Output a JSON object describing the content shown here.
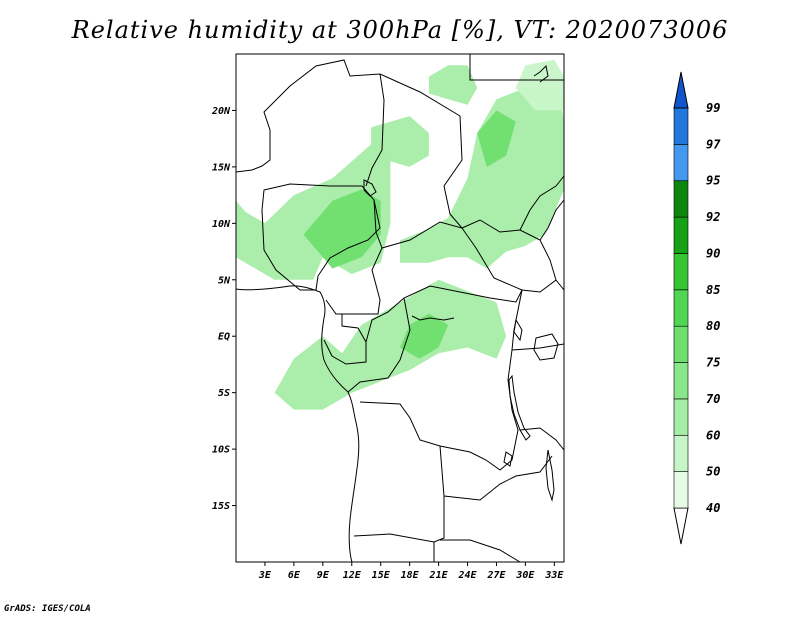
{
  "title": "Relative humidity at 300hPa [%], VT: 2020073006",
  "credit": "GrADS: IGES/COLA",
  "map": {
    "lon_range": [
      0,
      34
    ],
    "lat_range": [
      -20,
      25
    ],
    "lat_ticks": [
      {
        "value": 20,
        "label": "20N"
      },
      {
        "value": 15,
        "label": "15N"
      },
      {
        "value": 10,
        "label": "10N"
      },
      {
        "value": 5,
        "label": "5N"
      },
      {
        "value": 0,
        "label": "EQ"
      },
      {
        "value": -5,
        "label": "5S"
      },
      {
        "value": -10,
        "label": "10S"
      },
      {
        "value": -15,
        "label": "15S"
      }
    ],
    "lon_ticks": [
      {
        "value": 3,
        "label": "3E"
      },
      {
        "value": 6,
        "label": "6E"
      },
      {
        "value": 9,
        "label": "9E"
      },
      {
        "value": 12,
        "label": "12E"
      },
      {
        "value": 15,
        "label": "15E"
      },
      {
        "value": 18,
        "label": "18E"
      },
      {
        "value": 21,
        "label": "21E"
      },
      {
        "value": 24,
        "label": "24E"
      },
      {
        "value": 27,
        "label": "27E"
      },
      {
        "value": 30,
        "label": "30E"
      },
      {
        "value": 33,
        "label": "33E"
      }
    ],
    "humidity_regions": [
      {
        "level": 60,
        "points": [
          [
            0,
            7
          ],
          [
            4,
            5
          ],
          [
            8,
            5
          ],
          [
            9,
            7
          ],
          [
            12,
            5.5
          ],
          [
            15,
            6.5
          ],
          [
            16,
            10
          ],
          [
            16,
            16
          ],
          [
            14,
            17
          ],
          [
            10,
            14
          ],
          [
            6,
            12.5
          ],
          [
            3,
            10
          ],
          [
            1,
            11
          ],
          [
            0,
            12
          ]
        ]
      },
      {
        "level": 75,
        "points": [
          [
            7,
            9
          ],
          [
            10,
            6
          ],
          [
            13,
            7
          ],
          [
            15,
            9
          ],
          [
            15,
            12
          ],
          [
            13,
            13
          ],
          [
            10,
            12
          ]
        ]
      },
      {
        "level": 60,
        "points": [
          [
            4,
            -5
          ],
          [
            6,
            -2
          ],
          [
            9,
            0
          ],
          [
            11,
            -1.5
          ],
          [
            13,
            1
          ],
          [
            15,
            2
          ],
          [
            17,
            3
          ],
          [
            19,
            4
          ],
          [
            21,
            5
          ],
          [
            24,
            4
          ],
          [
            27,
            3
          ],
          [
            28,
            0
          ],
          [
            27,
            -2
          ],
          [
            24,
            -1
          ],
          [
            21,
            -1.5
          ],
          [
            18,
            -3
          ],
          [
            15,
            -4
          ],
          [
            12,
            -5
          ],
          [
            9,
            -6.5
          ],
          [
            6,
            -6.5
          ]
        ]
      },
      {
        "level": 75,
        "points": [
          [
            18,
            1
          ],
          [
            20,
            2
          ],
          [
            22,
            1
          ],
          [
            21,
            -1
          ],
          [
            19,
            -2
          ],
          [
            17,
            -1
          ]
        ]
      },
      {
        "level": 60,
        "points": [
          [
            17,
            8.5
          ],
          [
            20,
            9.5
          ],
          [
            22,
            10.5
          ],
          [
            24,
            14
          ],
          [
            25,
            18
          ],
          [
            27,
            21
          ],
          [
            30,
            22
          ],
          [
            33.5,
            22
          ],
          [
            34,
            19
          ],
          [
            34,
            13
          ],
          [
            32,
            9
          ],
          [
            30,
            8
          ],
          [
            28,
            7.5
          ],
          [
            26,
            6
          ],
          [
            24,
            7
          ],
          [
            22,
            7
          ],
          [
            20,
            6.5
          ],
          [
            17,
            6.5
          ]
        ]
      },
      {
        "level": 75,
        "points": [
          [
            25,
            18
          ],
          [
            27,
            20
          ],
          [
            29,
            19
          ],
          [
            28,
            16
          ],
          [
            26,
            15
          ]
        ]
      },
      {
        "level": 60,
        "points": [
          [
            14,
            18.5
          ],
          [
            16,
            19
          ],
          [
            18,
            19.5
          ],
          [
            20,
            18
          ],
          [
            20,
            16
          ],
          [
            18,
            15
          ],
          [
            16,
            15.5
          ],
          [
            14,
            16.5
          ]
        ]
      },
      {
        "level": 60,
        "points": [
          [
            20,
            23
          ],
          [
            22,
            24
          ],
          [
            24,
            24
          ],
          [
            25,
            22
          ],
          [
            24,
            20.5
          ],
          [
            22,
            21
          ],
          [
            20,
            21.5
          ]
        ]
      },
      {
        "level": 50,
        "points": [
          [
            30,
            24
          ],
          [
            33,
            24.5
          ],
          [
            34,
            23
          ],
          [
            34,
            20
          ],
          [
            31,
            20
          ],
          [
            29,
            22
          ]
        ]
      }
    ]
  },
  "colorbar": {
    "levels": [
      "40",
      "50",
      "60",
      "70",
      "75",
      "80",
      "85",
      "90",
      "92",
      "95",
      "97",
      "99"
    ],
    "colors": [
      "#ffffff",
      "#e6fae6",
      "#c8f5c8",
      "#a6eda6",
      "#8ae68a",
      "#6ede6e",
      "#52d552",
      "#35c535",
      "#17a117",
      "#0d860d",
      "#4499ee",
      "#2277dd",
      "#1155cc"
    ]
  }
}
